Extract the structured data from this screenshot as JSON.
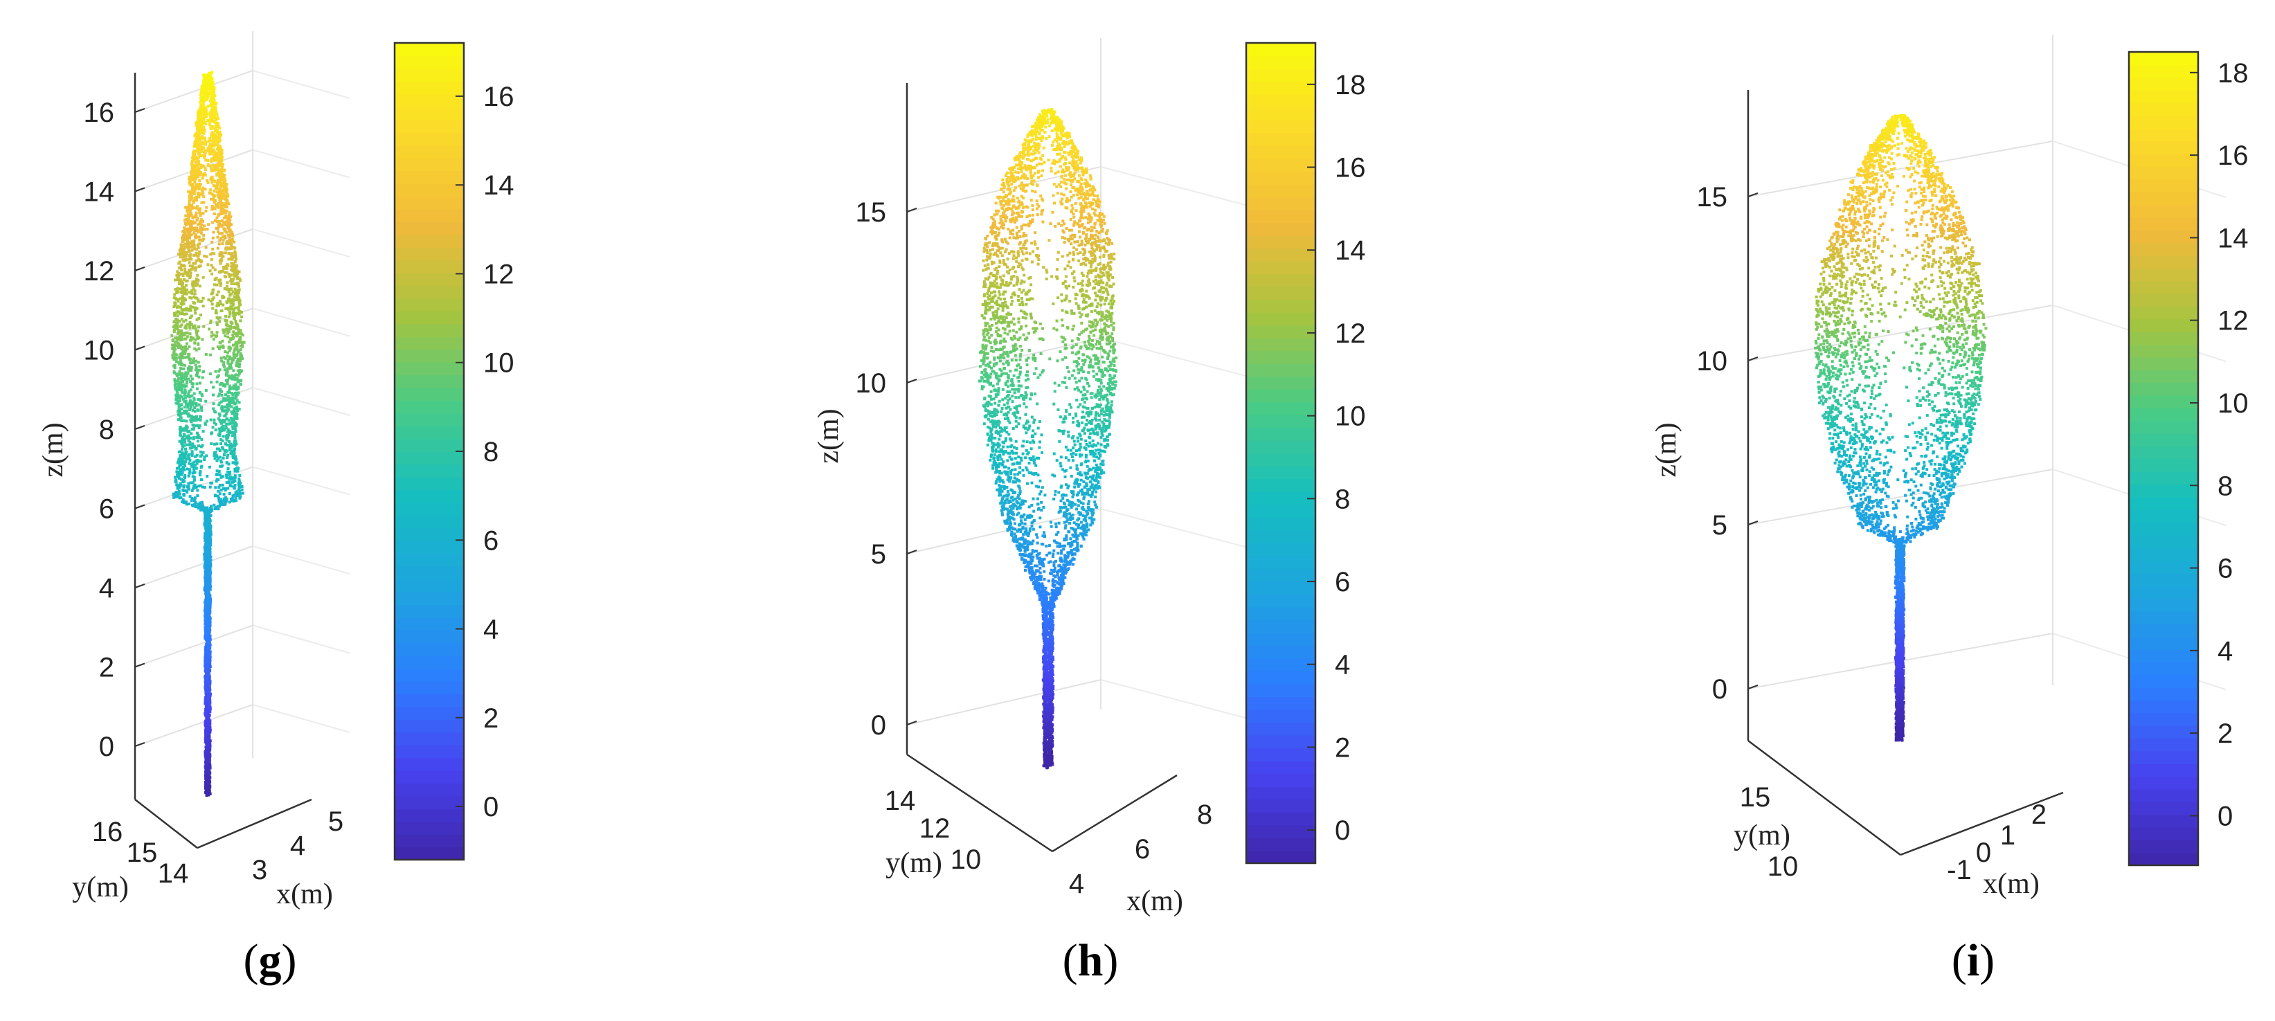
{
  "colormap": [
    "#3e26a8",
    "#4743f0",
    "#2c7ffe",
    "#1da5de",
    "#16bec0",
    "#48cb86",
    "#a5c43f",
    "#f1ba3b",
    "#fbd92a",
    "#f9fb0e"
  ],
  "panels": [
    {
      "id": "g",
      "label": "g",
      "chart_data": {
        "type": "scatter",
        "title": "",
        "xlabel": "x(m)",
        "ylabel": "y(m)",
        "zlabel": "z(m)",
        "x_ticks": [
          "3",
          "4",
          "5"
        ],
        "y_ticks": [
          "16",
          "15",
          "14"
        ],
        "z_ticks": [
          "0",
          "2",
          "4",
          "6",
          "8",
          "10",
          "12",
          "14",
          "16"
        ],
        "zlim": [
          -1,
          17
        ],
        "colorbar": {
          "min": -1.2,
          "max": 17.2,
          "ticks": [
            "0",
            "2",
            "4",
            "6",
            "8",
            "10",
            "12",
            "14",
            "16"
          ]
        },
        "grid": true,
        "crown_profile": [
          {
            "z": -1.2,
            "r": 0.03
          },
          {
            "z": 3.5,
            "r": 0.04
          },
          {
            "z": 6.0,
            "r": 0.06
          },
          {
            "z": 6.3,
            "r": 0.9
          },
          {
            "z": 7.5,
            "r": 0.7
          },
          {
            "z": 8.8,
            "r": 0.8
          },
          {
            "z": 10.2,
            "r": 0.9
          },
          {
            "z": 11.8,
            "r": 0.8
          },
          {
            "z": 13.5,
            "r": 0.55
          },
          {
            "z": 15.5,
            "r": 0.3
          },
          {
            "z": 17.0,
            "r": 0.08
          }
        ]
      }
    },
    {
      "id": "h",
      "label": "h",
      "chart_data": {
        "type": "scatter",
        "title": "",
        "xlabel": "x(m)",
        "ylabel": "y(m)",
        "zlabel": "z(m)",
        "x_ticks": [
          "4",
          "6",
          "8"
        ],
        "y_ticks": [
          "14",
          "12",
          "10"
        ],
        "z_ticks": [
          "0",
          "5",
          "10",
          "15"
        ],
        "zlim": [
          -1,
          19
        ],
        "colorbar": {
          "min": -0.8,
          "max": 19.0,
          "ticks": [
            "0",
            "2",
            "4",
            "6",
            "8",
            "10",
            "12",
            "14",
            "16",
            "18"
          ]
        },
        "grid": true,
        "crown_profile": [
          {
            "z": -1.2,
            "r": 0.1
          },
          {
            "z": 3.5,
            "r": 0.12
          },
          {
            "z": 4.5,
            "r": 0.6
          },
          {
            "z": 6.0,
            "r": 1.3
          },
          {
            "z": 8.0,
            "r": 1.7
          },
          {
            "z": 10.0,
            "r": 2.0
          },
          {
            "z": 12.0,
            "r": 1.9
          },
          {
            "z": 14.0,
            "r": 1.9
          },
          {
            "z": 16.0,
            "r": 1.3
          },
          {
            "z": 17.3,
            "r": 0.6
          },
          {
            "z": 18.0,
            "r": 0.1
          }
        ]
      }
    },
    {
      "id": "i",
      "label": "i",
      "chart_data": {
        "type": "scatter",
        "title": "",
        "xlabel": "x(m)",
        "ylabel": "y(m)",
        "zlabel": "z(m)",
        "x_ticks": [
          "-1",
          "0",
          "1",
          "2"
        ],
        "y_ticks": [
          "15",
          "10"
        ],
        "z_ticks": [
          "0",
          "5",
          "10",
          "15"
        ],
        "zlim": [
          -2,
          18
        ],
        "colorbar": {
          "min": -1.2,
          "max": 18.5,
          "ticks": [
            "0",
            "2",
            "4",
            "6",
            "8",
            "10",
            "12",
            "14",
            "16",
            "18"
          ]
        },
        "grid": true,
        "crown_profile": [
          {
            "z": -1.5,
            "r": 0.08
          },
          {
            "z": 4.5,
            "r": 0.1
          },
          {
            "z": 5.0,
            "r": 1.2
          },
          {
            "z": 7.0,
            "r": 2.0
          },
          {
            "z": 9.0,
            "r": 2.5
          },
          {
            "z": 11.0,
            "r": 2.6
          },
          {
            "z": 13.0,
            "r": 2.4
          },
          {
            "z": 15.0,
            "r": 1.7
          },
          {
            "z": 16.5,
            "r": 0.9
          },
          {
            "z": 17.5,
            "r": 0.15
          }
        ]
      }
    }
  ]
}
